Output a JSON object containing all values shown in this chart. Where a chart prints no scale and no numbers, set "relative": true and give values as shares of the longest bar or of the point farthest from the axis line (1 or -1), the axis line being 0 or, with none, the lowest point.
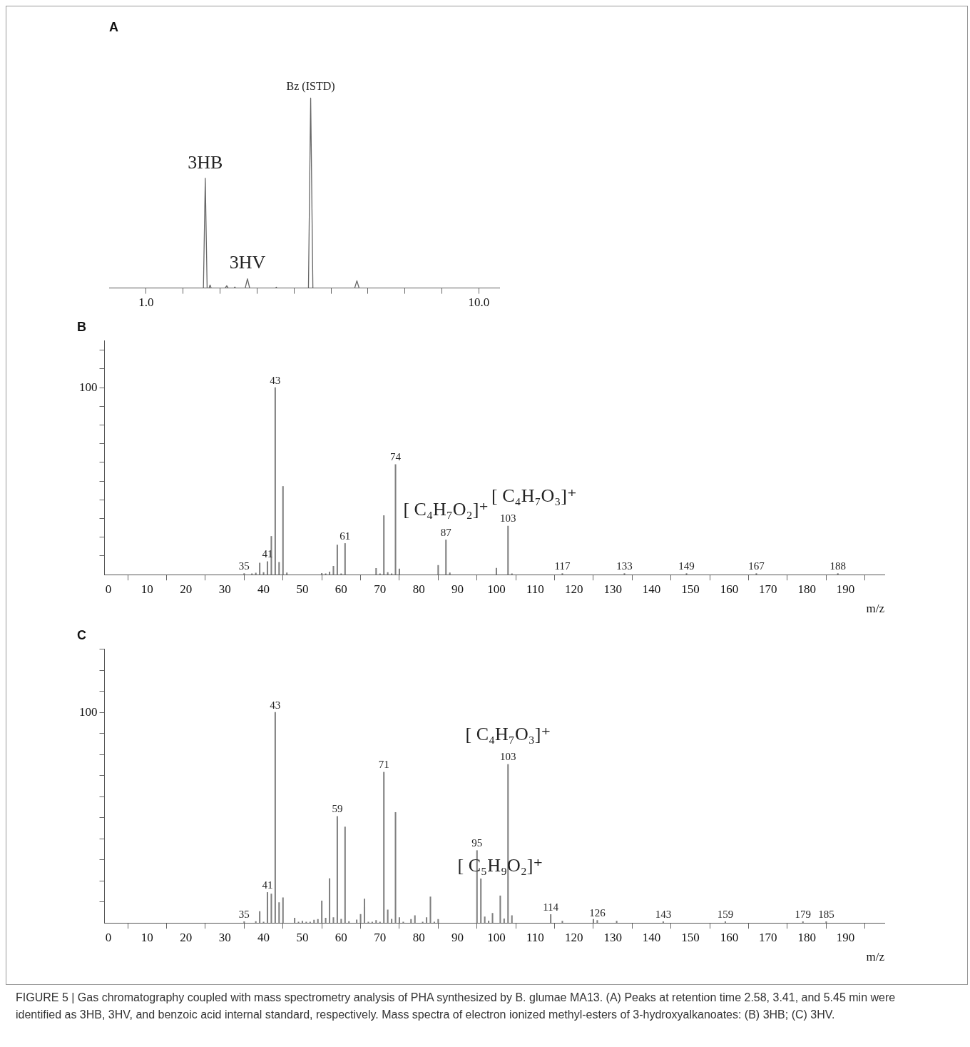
{
  "chart_data": [
    {
      "type": "line",
      "title": "A",
      "relative": true,
      "color": "#666666",
      "x": [
        2.45,
        2.55,
        2.6,
        2.65,
        2.7,
        2.73,
        2.76,
        3.14,
        3.18,
        3.22,
        3.38,
        3.4,
        3.42,
        3.68,
        3.74,
        3.8,
        4.5,
        4.52,
        4.54,
        5.39,
        5.45,
        5.51,
        6.64,
        6.7,
        6.76,
        10.55
      ],
      "values": [
        0,
        0,
        0.578,
        0,
        0,
        0.016,
        0,
        0,
        0.012,
        0,
        0,
        0.005,
        0,
        0,
        0.049,
        0,
        0,
        0.004,
        0,
        0,
        1,
        0,
        0,
        0.038,
        0,
        0
      ],
      "xlim": [
        0,
        10.55
      ],
      "xticks": [
        {
          "value": 1,
          "label": "1.0"
        },
        {
          "value": 2,
          "label": null
        },
        {
          "value": 3,
          "label": null
        },
        {
          "value": 4,
          "label": null
        },
        {
          "value": 5,
          "label": null
        },
        {
          "value": 6,
          "label": null
        },
        {
          "value": 7,
          "label": null
        },
        {
          "value": 8,
          "label": null
        },
        {
          "value": 9,
          "label": null
        },
        {
          "value": 10,
          "label": "10.0"
        }
      ],
      "annotations": [
        {
          "text": "3HB",
          "x": 2.6,
          "y": 0.578
        },
        {
          "text": "3HV",
          "x": 3.74,
          "y": 0.049
        },
        {
          "text": "Bz (ISTD)",
          "x": 5.45,
          "y": 1
        }
      ]
    },
    {
      "type": "bar",
      "title": "B",
      "xlabel": "m/z",
      "color": "#808080",
      "x": [
        35,
        37,
        38,
        39,
        40,
        41,
        42,
        43,
        44,
        45,
        46,
        55,
        56,
        57,
        58,
        59,
        60,
        61,
        69,
        70,
        71,
        72,
        73,
        74,
        75,
        85,
        87,
        88,
        100,
        103,
        104,
        117,
        133,
        149,
        167,
        188
      ],
      "values": [
        0.6,
        0.5,
        0.9,
        6.2,
        1.2,
        7.0,
        20.5,
        100,
        6.6,
        47.2,
        1.0,
        0.7,
        0.5,
        1.5,
        4.5,
        15.9,
        0.5,
        16.7,
        3.4,
        0.5,
        31.6,
        1.2,
        0.5,
        58.9,
        3.1,
        5,
        18.6,
        1,
        3.5,
        26,
        0.5,
        0.6,
        0.6,
        0.6,
        0.6,
        0.6
      ],
      "xlim": [
        -1,
        200
      ],
      "xticks": [
        0,
        10,
        20,
        30,
        40,
        50,
        60,
        70,
        80,
        90,
        100,
        110,
        120,
        130,
        140,
        150,
        160,
        170,
        180,
        190
      ],
      "ylim": [
        0,
        125
      ],
      "yticks": [
        {
          "value": 10,
          "label": null
        },
        {
          "value": 20,
          "label": null
        },
        {
          "value": 30,
          "label": null
        },
        {
          "value": 40,
          "label": null
        },
        {
          "value": 50,
          "label": null
        },
        {
          "value": 60,
          "label": null
        },
        {
          "value": 70,
          "label": null
        },
        {
          "value": 80,
          "label": null
        },
        {
          "value": 90,
          "label": null
        },
        100,
        {
          "value": 110,
          "label": null
        },
        {
          "value": 120,
          "label": null
        }
      ],
      "annotations": [
        {
          "text": "35",
          "x": 35,
          "y": 0.6
        },
        {
          "text": "41",
          "x": 41,
          "y": 7.0
        },
        {
          "text": "43",
          "x": 43,
          "y": 100
        },
        {
          "text": "61",
          "x": 61,
          "y": 16.7
        },
        {
          "text": "74",
          "x": 74,
          "y": 58.9
        },
        {
          "text": "87",
          "x": 87,
          "y": 18.6
        },
        {
          "text": "103",
          "x": 103,
          "y": 26
        },
        {
          "text": "117",
          "x": 117,
          "y": 0.6
        },
        {
          "text": "133",
          "x": 133,
          "y": 0.6
        },
        {
          "text": "149",
          "x": 149,
          "y": 0.6
        },
        {
          "text": "167",
          "x": 167,
          "y": 0.6
        },
        {
          "text": "188",
          "x": 188,
          "y": 0.6
        },
        {
          "text": "[ C₄H₇O₂]⁺",
          "x": 87,
          "y": 18.6
        },
        {
          "text": "[ C₄H₇O₃]⁺",
          "x": 103,
          "y": 26
        }
      ]
    },
    {
      "type": "bar",
      "title": "C",
      "xlabel": "m/z",
      "color": "#808080",
      "x": [
        35,
        38,
        39,
        40,
        41,
        42,
        43,
        44,
        45,
        48,
        49,
        50,
        51,
        52,
        53,
        54,
        55,
        56,
        57,
        58,
        59,
        60,
        61,
        62,
        64,
        65,
        66,
        67,
        68,
        69,
        70,
        71,
        72,
        73,
        74,
        75,
        76,
        78,
        79,
        81,
        82,
        83,
        84,
        85,
        95,
        96,
        97,
        98,
        99,
        101,
        102,
        103,
        104,
        114,
        117,
        125,
        126,
        131,
        143,
        159,
        179,
        185
      ],
      "values": [
        0.6,
        0.7,
        5.5,
        0.5,
        14.5,
        13.8,
        100,
        9.7,
        12.0,
        2.3,
        0.5,
        0.9,
        0.5,
        0.5,
        1.4,
        1.7,
        10.5,
        2.3,
        21.1,
        2.6,
        50.6,
        1.8,
        45.6,
        0.7,
        1.5,
        4.1,
        11.4,
        0.5,
        0.5,
        1.2,
        0.5,
        71.6,
        6.2,
        1.8,
        52.5,
        2.6,
        0.5,
        1.7,
        3.5,
        0.5,
        2.6,
        12.4,
        0.5,
        1.7,
        34.4,
        21,
        2.9,
        1.0,
        4.6,
        12.9,
        2.0,
        75.3,
        3.5,
        4.0,
        0.9,
        1.7,
        1.2,
        0.9,
        0.6,
        0.6,
        0.6,
        0.6
      ],
      "xlim": [
        -1,
        200
      ],
      "xticks": [
        0,
        10,
        20,
        30,
        40,
        50,
        60,
        70,
        80,
        90,
        100,
        110,
        120,
        130,
        140,
        150,
        160,
        170,
        180,
        190
      ],
      "ylim": [
        0,
        130
      ],
      "yticks": [
        {
          "value": 10,
          "label": null
        },
        {
          "value": 20,
          "label": null
        },
        {
          "value": 30,
          "label": null
        },
        {
          "value": 40,
          "label": null
        },
        {
          "value": 50,
          "label": null
        },
        {
          "value": 60,
          "label": null
        },
        {
          "value": 70,
          "label": null
        },
        {
          "value": 80,
          "label": null
        },
        {
          "value": 90,
          "label": null
        },
        100,
        {
          "value": 110,
          "label": null
        },
        {
          "value": 120,
          "label": null
        },
        {
          "value": 130,
          "label": null
        }
      ],
      "annotations": [
        {
          "text": "35",
          "x": 35,
          "y": 0.6
        },
        {
          "text": "41",
          "x": 41,
          "y": 14.5
        },
        {
          "text": "43",
          "x": 43,
          "y": 100
        },
        {
          "text": "59",
          "x": 59,
          "y": 50.6
        },
        {
          "text": "71",
          "x": 71,
          "y": 71.6
        },
        {
          "text": "95",
          "x": 95,
          "y": 34.4
        },
        {
          "text": "103",
          "x": 103,
          "y": 75.3
        },
        {
          "text": "114",
          "x": 114,
          "y": 4.0
        },
        {
          "text": "126",
          "x": 126,
          "y": 1.2
        },
        {
          "text": "143",
          "x": 143,
          "y": 0.6
        },
        {
          "text": "159",
          "x": 159,
          "y": 0.6
        },
        {
          "text": "179",
          "x": 179,
          "y": 0.6
        },
        {
          "text": "185",
          "x": 185,
          "y": 0.6
        },
        {
          "text": "[ C₄H₇O₃]⁺",
          "x": 103,
          "y": 75.3
        },
        {
          "text": "[ C₅H₉O₂]⁺",
          "x": 101,
          "y": 12.9
        },
        "FIGURE 5 | Gas chromatography coupled with mass spectrometry analysis of PHA synthesized by B. glumae MA13. (A) Peaks at retention time 2.58, 3.41, and 5.45 min were identified as 3HB, 3HV, and benzoic acid internal standard, respectively. Mass spectra of electron ionized methyl-esters of 3-hydroxyalkanoates: (B) 3HB; (C) 3HV."
      ]
    }
  ]
}
